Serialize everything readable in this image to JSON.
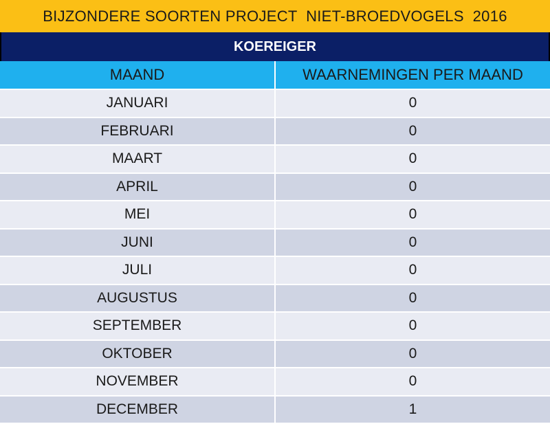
{
  "header": {
    "title": "BIJZONDERE SOORTEN PROJECT  NIET-BROEDVOGELS  2016",
    "species": "KOEREIGER"
  },
  "table": {
    "columns": [
      "MAAND",
      "WAARNEMINGEN PER MAAND"
    ],
    "rows": [
      {
        "month": "JANUARI",
        "count": "0"
      },
      {
        "month": "FEBRUARI",
        "count": "0"
      },
      {
        "month": "MAART",
        "count": "0"
      },
      {
        "month": "APRIL",
        "count": "0"
      },
      {
        "month": "MEI",
        "count": "0"
      },
      {
        "month": "JUNI",
        "count": "0"
      },
      {
        "month": "JULI",
        "count": "0"
      },
      {
        "month": "AUGUSTUS",
        "count": "0"
      },
      {
        "month": "SEPTEMBER",
        "count": "0"
      },
      {
        "month": "OKTOBER",
        "count": "0"
      },
      {
        "month": "NOVEMBER",
        "count": "0"
      },
      {
        "month": "DECEMBER",
        "count": "1"
      }
    ]
  },
  "colors": {
    "title_bar": "#fbbf15",
    "species_bar": "#0b1f66",
    "header_row": "#1fb0ee",
    "row_light": "#e9ebf3",
    "row_dark": "#cfd4e3"
  }
}
